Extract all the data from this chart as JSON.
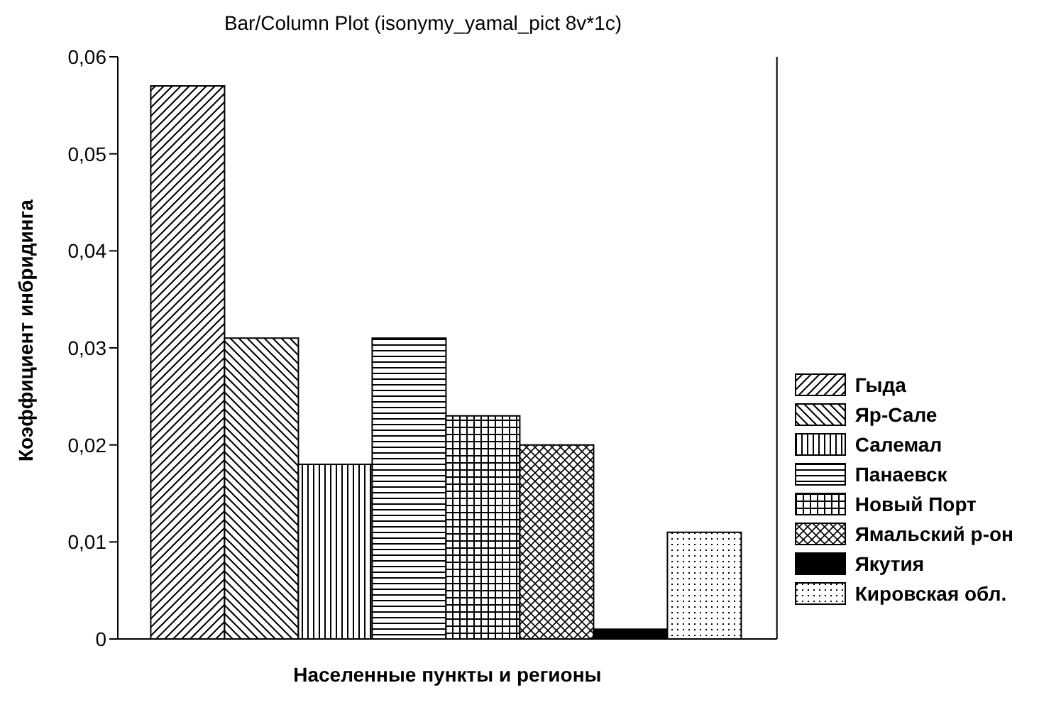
{
  "chart_data": {
    "type": "bar",
    "title": "Bar/Column Plot (isonymy_yamal_pict 8v*1c)",
    "xlabel": "Населенные пункты и регионы",
    "ylabel": "Коэффициент инбридинга",
    "categories": [
      null
    ],
    "series": [
      {
        "name": "Гыда",
        "color": "#000000",
        "values": [
          0.057
        ]
      },
      {
        "name": "Яр-Сале",
        "color": "#000000",
        "values": [
          0.031
        ]
      },
      {
        "name": "Салемал",
        "color": "#000000",
        "values": [
          0.018
        ]
      },
      {
        "name": "Панаевск",
        "color": "#000000",
        "values": [
          0.031
        ]
      },
      {
        "name": "Новый Порт",
        "color": "#000000",
        "values": [
          0.023
        ]
      },
      {
        "name": "Ямальский р-он",
        "color": "#000000",
        "values": [
          0.02
        ]
      },
      {
        "name": "Якутия",
        "color": "#000000",
        "values": [
          0.001
        ]
      },
      {
        "name": "Кировская обл.",
        "color": "#000000",
        "values": [
          0.011
        ]
      }
    ],
    "ylim": [
      0,
      0.06
    ],
    "yticks": [
      {
        "value": 0,
        "label": "0"
      },
      {
        "value": 0.01,
        "label": "0,01"
      },
      {
        "value": 0.02,
        "label": "0,02"
      },
      {
        "value": 0.03,
        "label": "0,03"
      },
      {
        "value": 0.04,
        "label": "0,04"
      },
      {
        "value": 0.05,
        "label": "0,05"
      },
      {
        "value": 0.06,
        "label": "0,06"
      }
    ],
    "grid": false,
    "legend": "right"
  }
}
